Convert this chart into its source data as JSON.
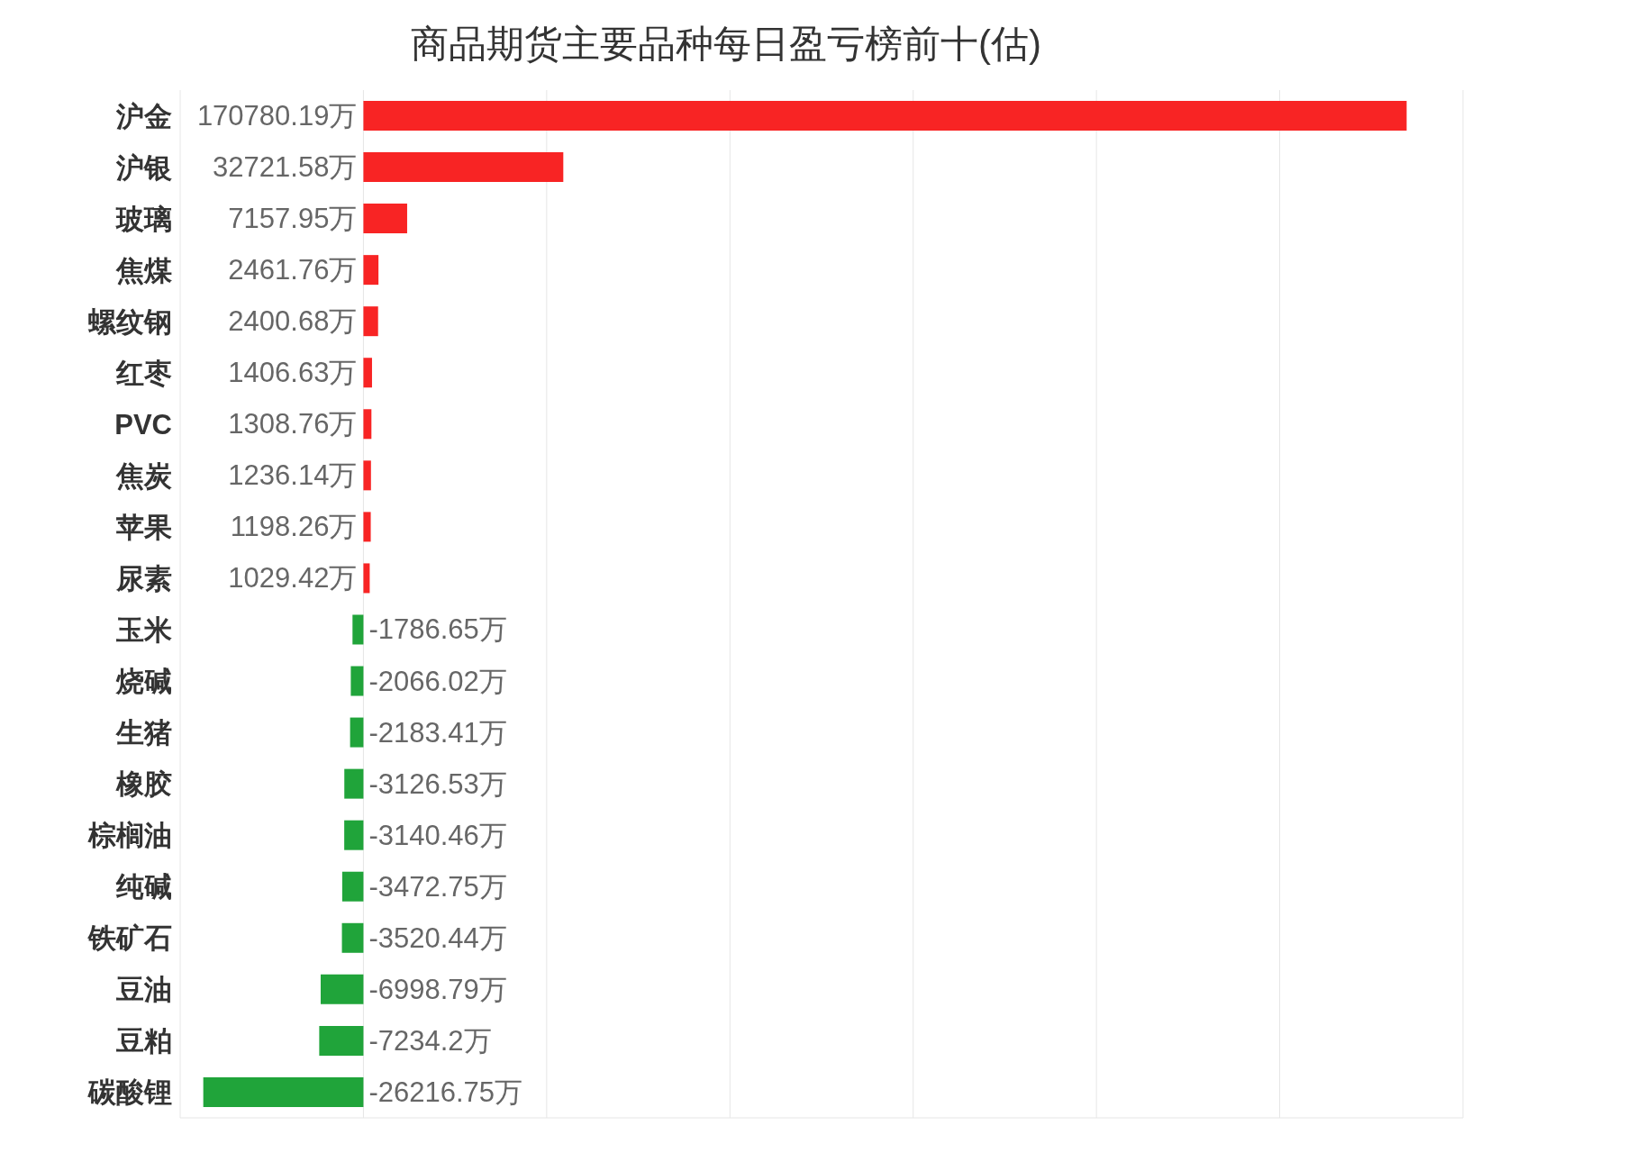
{
  "chart_data": {
    "type": "bar",
    "orientation": "horizontal",
    "title": "商品期货主要品种每日盈亏榜前十(估)",
    "categories": [
      "沪金",
      "沪银",
      "玻璃",
      "焦煤",
      "螺纹钢",
      "红枣",
      "PVC",
      "焦炭",
      "苹果",
      "尿素",
      "玉米",
      "烧碱",
      "生猪",
      "橡胶",
      "棕榈油",
      "纯碱",
      "铁矿石",
      "豆油",
      "豆粕",
      "碳酸锂"
    ],
    "values": [
      170780.19,
      32721.58,
      7157.95,
      2461.76,
      2400.68,
      1406.63,
      1308.76,
      1236.14,
      1198.26,
      1029.42,
      -1786.65,
      -2066.02,
      -2183.41,
      -3126.53,
      -3140.46,
      -3472.75,
      -3520.44,
      -6998.79,
      -7234.2,
      -26216.75
    ],
    "colors": [
      "#f82424",
      "#f82424",
      "#f82424",
      "#f82424",
      "#f82424",
      "#f82424",
      "#f82424",
      "#f82424",
      "#f82424",
      "#f82424",
      "#20a43a",
      "#20a43a",
      "#20a43a",
      "#20a43a",
      "#20a43a",
      "#20a43a",
      "#20a43a",
      "#20a43a",
      "#20a43a",
      "#20a43a"
    ],
    "value_labels": [
      "170780.19万",
      "32721.58万",
      "7157.95万",
      "2461.76万",
      "2400.68万",
      "1406.63万",
      "1308.76万",
      "1236.14万",
      "1198.26万",
      "1029.42万",
      "-1786.65万",
      "-2066.02万",
      "-2183.41万",
      "-3126.53万",
      "-3140.46万",
      "-3472.75万",
      "-3520.44万",
      "-6998.79万",
      "-7234.2万",
      "-26216.75万"
    ],
    "xlim": [
      -30000,
      180000
    ],
    "xticks": [
      {
        "value": -30000,
        "label": null
      },
      {
        "value": 0,
        "label": null
      },
      {
        "value": 30000,
        "label": null
      },
      {
        "value": 60000,
        "label": null
      },
      {
        "value": 90000,
        "label": null
      },
      {
        "value": 120000,
        "label": null
      },
      {
        "value": 150000,
        "label": null
      },
      {
        "value": 180000,
        "label": null
      }
    ],
    "grid": "x",
    "tick_labels": "y"
  }
}
